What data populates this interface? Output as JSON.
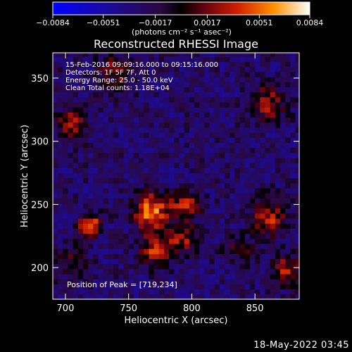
{
  "chart_data": {
    "type": "heatmap",
    "title": "Reconstructed RHESSI Image",
    "xlabel": "Heliocentric X (arcsec)",
    "ylabel": "Heliocentric Y (arcsec)",
    "xlim": [
      690,
      885
    ],
    "ylim": [
      175,
      370
    ],
    "x_ticks": [
      700,
      750,
      800,
      850
    ],
    "y_ticks": [
      200,
      250,
      300,
      350
    ],
    "colorbar": {
      "range": [
        -0.0084,
        0.0084
      ],
      "tick_values": [
        -0.0084,
        -0.0051,
        -0.0017,
        0.0017,
        0.0051,
        0.0084
      ],
      "tick_labels": [
        "−0.0084",
        "−0.0051",
        "−0.0017",
        "0.0017",
        "0.0051",
        "0.0084"
      ],
      "units": "(photons cm⁻² s⁻¹ asec⁻²)"
    },
    "sources": [
      {
        "x": 719,
        "y": 234,
        "amp": 1.0,
        "sigma": 6
      },
      {
        "x": 768,
        "y": 245,
        "amp": 0.95,
        "sigma": 10
      },
      {
        "x": 772,
        "y": 215,
        "amp": 0.75,
        "sigma": 9
      },
      {
        "x": 795,
        "y": 248,
        "amp": 0.7,
        "sigma": 8
      },
      {
        "x": 793,
        "y": 222,
        "amp": 0.55,
        "sigma": 8
      },
      {
        "x": 705,
        "y": 315,
        "amp": 0.65,
        "sigma": 8
      },
      {
        "x": 740,
        "y": 355,
        "amp": 0.5,
        "sigma": 10
      },
      {
        "x": 860,
        "y": 330,
        "amp": 0.6,
        "sigma": 10
      },
      {
        "x": 860,
        "y": 240,
        "amp": 0.7,
        "sigma": 10
      },
      {
        "x": 875,
        "y": 198,
        "amp": 0.65,
        "sigma": 8
      },
      {
        "x": 705,
        "y": 205,
        "amp": 0.35,
        "sigma": 9
      },
      {
        "x": 838,
        "y": 215,
        "amp": 0.4,
        "sigma": 8
      }
    ],
    "annotations": [
      "15-Feb-2016 09:09:16.000 to 09:15:16.000",
      "Detectors: 1F 5F 7F, Att 0",
      "Energy Range: 25.0 - 50.0 keV",
      "Clean    Total counts: 1.18E+04"
    ],
    "peak_label": "Position of Peak = [719,234]",
    "peak": {
      "x": 719,
      "y": 234
    }
  },
  "footer": {
    "timestamp": "18-May-2022 03:45"
  }
}
